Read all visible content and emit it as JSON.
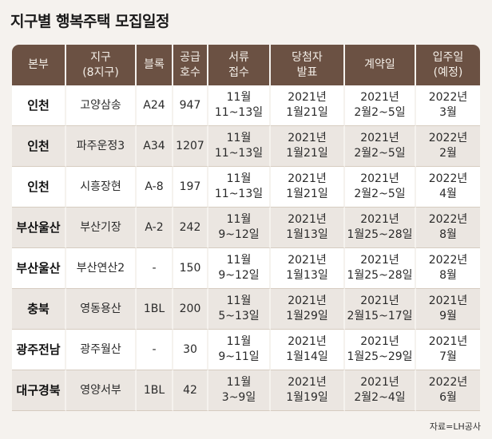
{
  "title": "지구별 행복주택 모집일정",
  "headers": [
    [
      "본부"
    ],
    [
      "지구",
      "(8지구)"
    ],
    [
      "블록"
    ],
    [
      "공급",
      "호수"
    ],
    [
      "서류",
      "접수"
    ],
    [
      "당첨자",
      "발표"
    ],
    [
      "계약일"
    ],
    [
      "입주일",
      "(예정)"
    ]
  ],
  "rows": [
    {
      "hq": "인천",
      "district": "고양삼송",
      "block": "A24",
      "units": "947",
      "docs": [
        "11월",
        "11~13일"
      ],
      "announce": [
        "2021년",
        "1월21일"
      ],
      "contract": [
        "2021년",
        "2월2~5일"
      ],
      "movein": [
        "2022년",
        "3월"
      ]
    },
    {
      "hq": "인천",
      "district": "파주운정3",
      "block": "A34",
      "units": "1207",
      "docs": [
        "11월",
        "11~13일"
      ],
      "announce": [
        "2021년",
        "1월21일"
      ],
      "contract": [
        "2021년",
        "2월2~5일"
      ],
      "movein": [
        "2022년",
        "2월"
      ]
    },
    {
      "hq": "인천",
      "district": "시흥장현",
      "block": "A-8",
      "units": "197",
      "docs": [
        "11월",
        "11~13일"
      ],
      "announce": [
        "2021년",
        "1월21일"
      ],
      "contract": [
        "2021년",
        "2월2~5일"
      ],
      "movein": [
        "2022년",
        "4월"
      ]
    },
    {
      "hq": "부산울산",
      "district": "부산기장",
      "block": "A-2",
      "units": "242",
      "docs": [
        "11월",
        "9~12일"
      ],
      "announce": [
        "2021년",
        "1월13일"
      ],
      "contract": [
        "2021년",
        "1월25~28일"
      ],
      "movein": [
        "2022년",
        "8월"
      ]
    },
    {
      "hq": "부산울산",
      "district": "부산연산2",
      "block": "-",
      "units": "150",
      "docs": [
        "11월",
        "9~12일"
      ],
      "announce": [
        "2021년",
        "1월13일"
      ],
      "contract": [
        "2021년",
        "1월25~28일"
      ],
      "movein": [
        "2022년",
        "8월"
      ]
    },
    {
      "hq": "충북",
      "district": "영동용산",
      "block": "1BL",
      "units": "200",
      "docs": [
        "11월",
        "5~13일"
      ],
      "announce": [
        "2021년",
        "1월29일"
      ],
      "contract": [
        "2021년",
        "2월15~17일"
      ],
      "movein": [
        "2021년",
        "9월"
      ]
    },
    {
      "hq": "광주전남",
      "district": "광주월산",
      "block": "-",
      "units": "30",
      "docs": [
        "11월",
        "9~11일"
      ],
      "announce": [
        "2021년",
        "1월14일"
      ],
      "contract": [
        "2021년",
        "1월25~29일"
      ],
      "movein": [
        "2021년",
        "7월"
      ]
    },
    {
      "hq": "대구경북",
      "district": "영양서부",
      "block": "1BL",
      "units": "42",
      "docs": [
        "11월",
        "3~9일"
      ],
      "announce": [
        "2021년",
        "1월19일"
      ],
      "contract": [
        "2021년",
        "2월2~4일"
      ],
      "movein": [
        "2022년",
        "6월"
      ]
    }
  ],
  "source": "자료=LH공사"
}
